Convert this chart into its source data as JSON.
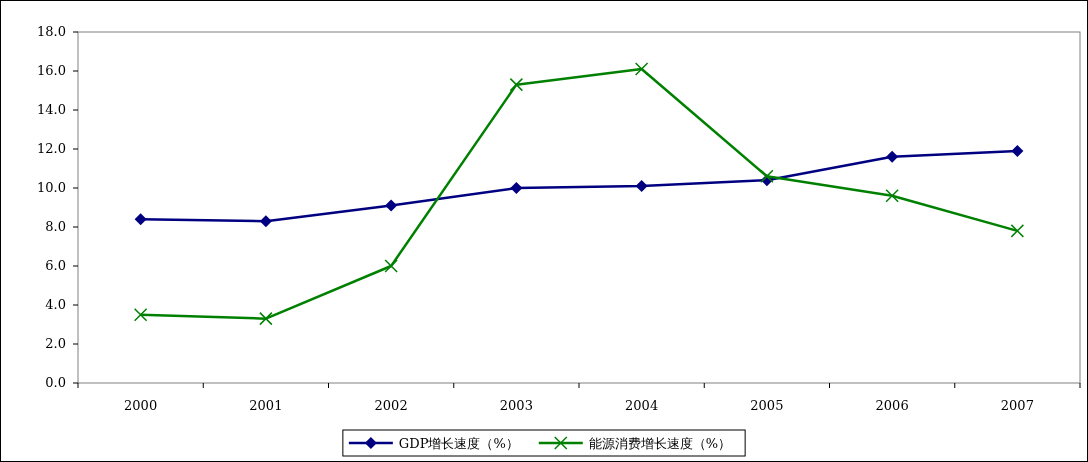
{
  "chart_data": {
    "type": "line",
    "categories": [
      "2000",
      "2001",
      "2002",
      "2003",
      "2004",
      "2005",
      "2006",
      "2007"
    ],
    "series": [
      {
        "name": "GDP增长速度（%）",
        "color": "#000080",
        "marker": "diamond",
        "values": [
          8.4,
          8.3,
          9.1,
          10.0,
          10.1,
          10.4,
          11.6,
          11.9
        ]
      },
      {
        "name": "能源消费增长速度（%）",
        "color": "#008000",
        "marker": "cross",
        "values": [
          3.5,
          3.3,
          6.0,
          15.3,
          16.1,
          10.6,
          9.6,
          7.8
        ]
      }
    ],
    "ylim": [
      0,
      18
    ],
    "yticks": [
      {
        "value": 0,
        "label": "0.0"
      },
      {
        "value": 2,
        "label": "2.0"
      },
      {
        "value": 4,
        "label": "4.0"
      },
      {
        "value": 6,
        "label": "6.0"
      },
      {
        "value": 8,
        "label": "8.0"
      },
      {
        "value": 10,
        "label": "10.0"
      },
      {
        "value": 12,
        "label": "12.0"
      },
      {
        "value": 14,
        "label": "14.0"
      },
      {
        "value": 16,
        "label": "16.0"
      },
      {
        "value": 18,
        "label": "18.0"
      }
    ],
    "grid": false,
    "legend": "bottom",
    "line_style": "solid"
  }
}
